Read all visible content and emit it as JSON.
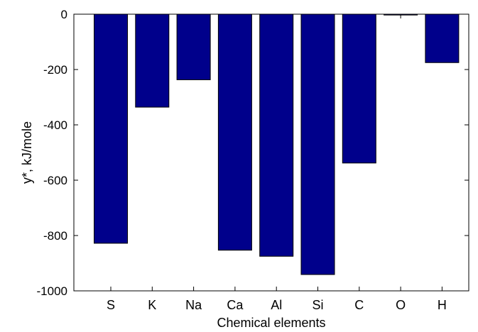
{
  "chart_data": {
    "type": "bar",
    "title": "",
    "xlabel": "Chemical elements",
    "ylabel": "y*, kJ/mole",
    "categories": [
      "S",
      "K",
      "Na",
      "Ca",
      "Al",
      "Si",
      "C",
      "O",
      "H"
    ],
    "values": [
      -828,
      -336,
      -237,
      -853,
      -875,
      -941,
      -538,
      -3,
      -175
    ],
    "ylim": [
      -1000,
      0
    ],
    "yticks": [
      0,
      -200,
      -400,
      -600,
      -800,
      -1000
    ],
    "ytick_labels": [
      "0",
      "-200",
      "-400",
      "-600",
      "-800",
      "-1000"
    ],
    "grid": false,
    "legend": "none",
    "bar_color": "#00008B",
    "axis_color": "#000000"
  }
}
